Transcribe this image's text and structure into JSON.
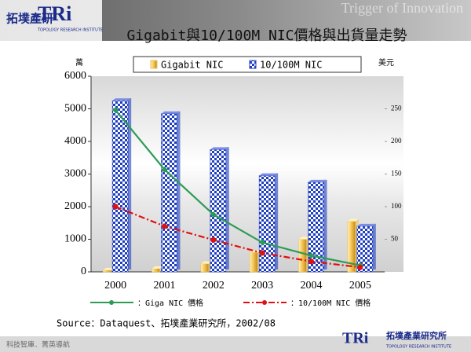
{
  "header": {
    "logo_cn": "拓墣產研",
    "logo": "TRi",
    "logo_sub": "TOPOLOGY RESEARCH INSTITUTE",
    "tagline": "Trigger of Innovation"
  },
  "chart_data": {
    "type": "bar",
    "title": "Gigabit與10/100M NIC價格與出貨量走勢",
    "y_unit": "萬",
    "y2_unit": "美元",
    "categories": [
      "2000",
      "2001",
      "2002",
      "2003",
      "2004",
      "2005"
    ],
    "series": [
      {
        "name": "Gigabit NIC",
        "type": "bar",
        "color": "#f2c14e",
        "values": [
          50,
          100,
          250,
          600,
          1000,
          1550
        ]
      },
      {
        "name": "10/100M NIC",
        "type": "bar",
        "color": "#1f3fbf",
        "values": [
          5250,
          4850,
          3750,
          2950,
          2750,
          1400
        ]
      },
      {
        "name": "：Giga NIC 價格",
        "type": "line",
        "axis": "y2",
        "color": "#2e9b55",
        "values": [
          248,
          157,
          88,
          45,
          25,
          10
        ]
      },
      {
        "name": "：10/100M NIC 價格",
        "type": "line",
        "axis": "y2",
        "color": "#e01010",
        "values": [
          100,
          70,
          49,
          29,
          16,
          7
        ]
      }
    ],
    "ylim": [
      0,
      6000
    ],
    "yticks": [
      0,
      1000,
      2000,
      3000,
      4000,
      5000,
      6000
    ],
    "y2lim": [
      0,
      300
    ],
    "y2ticks": [
      50,
      100,
      150,
      200,
      250
    ]
  },
  "source": "Source：Dataquest、拓墣產業研究所，2002/08",
  "footer": {
    "slogan": "科技智庫．菁英導航",
    "logo": "TRi",
    "logo_cn": "拓墣產業研究所",
    "logo_sub": "TOPOLOGY RESEARCH INSTITUTE"
  }
}
